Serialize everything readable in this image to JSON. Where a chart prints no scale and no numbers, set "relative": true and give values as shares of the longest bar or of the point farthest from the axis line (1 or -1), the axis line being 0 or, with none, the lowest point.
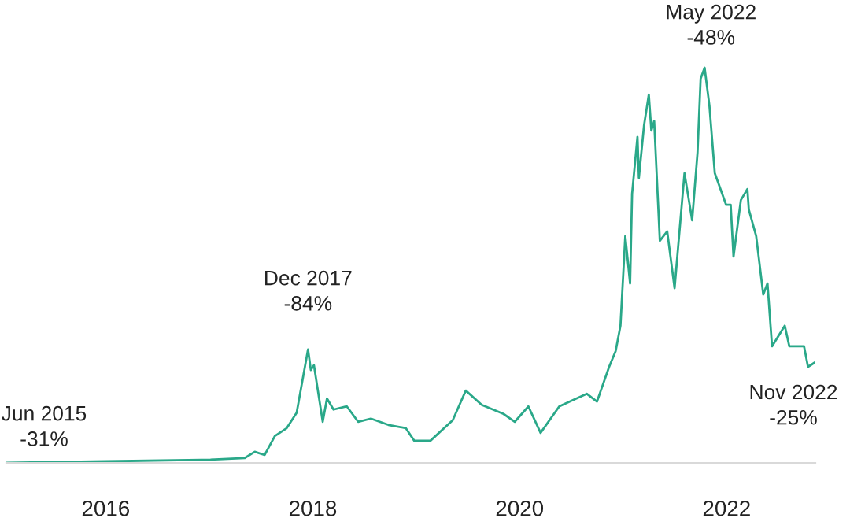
{
  "chart_data": {
    "type": "line",
    "relative": true,
    "color": "#2aa889",
    "x": [
      "2015-01-15",
      "2016-01-01",
      "2017-01-05",
      "2017-05-05",
      "2017-06-10",
      "2017-07-15",
      "2017-08-20",
      "2017-10-01",
      "2017-11-05",
      "2017-12-15",
      "2017-12-25",
      "2018-01-05",
      "2018-02-05",
      "2018-02-20",
      "2018-03-15",
      "2018-05-01",
      "2018-06-10",
      "2018-07-25",
      "2018-09-25",
      "2018-11-25",
      "2018-12-25",
      "2019-02-05",
      "2019-02-20",
      "2019-05-10",
      "2019-06-25",
      "2019-08-20",
      "2019-11-05",
      "2019-12-15",
      "2020-02-01",
      "2020-03-15",
      "2020-05-20",
      "2020-08-25",
      "2020-09-30",
      "2020-11-12",
      "2020-12-05",
      "2020-12-22",
      "2021-01-08",
      "2021-01-25",
      "2021-02-01",
      "2021-02-20",
      "2021-02-25",
      "2021-03-15",
      "2021-04-01",
      "2021-04-10",
      "2021-04-20",
      "2021-05-10",
      "2021-06-05",
      "2021-07-01",
      "2021-08-05",
      "2021-09-01",
      "2021-09-20",
      "2021-10-01",
      "2021-10-15",
      "2021-11-01",
      "2021-11-20",
      "2021-12-30",
      "2022-01-15",
      "2022-01-25",
      "2022-02-20",
      "2022-03-15",
      "2022-03-20",
      "2022-04-15",
      "2022-05-10",
      "2022-05-25",
      "2022-06-10",
      "2022-07-25",
      "2022-08-10",
      "2022-10-01",
      "2022-10-15",
      "2022-11-10"
    ],
    "values": [
      0,
      0.004,
      0.008,
      0.012,
      0.028,
      0.02,
      0.068,
      0.088,
      0.127,
      0.287,
      0.235,
      0.247,
      0.104,
      0.163,
      0.135,
      0.143,
      0.104,
      0.112,
      0.096,
      0.088,
      0.056,
      0.056,
      0.056,
      0.108,
      0.183,
      0.147,
      0.124,
      0.104,
      0.143,
      0.076,
      0.143,
      0.175,
      0.155,
      0.243,
      0.283,
      0.347,
      0.574,
      0.454,
      0.681,
      0.825,
      0.721,
      0.853,
      0.932,
      0.841,
      0.865,
      0.562,
      0.586,
      0.442,
      0.733,
      0.614,
      0.785,
      0.972,
      1,
      0.904,
      0.733,
      0.653,
      0.653,
      0.522,
      0.665,
      0.693,
      0.641,
      0.574,
      0.426,
      0.454,
      0.295,
      0.347,
      0.295,
      0.295,
      0.243,
      0.255
    ],
    "xlim": [
      "2015-01-15",
      "2022-11-10"
    ],
    "xticks": [
      "2016",
      "2018",
      "2020",
      "2022"
    ],
    "annotations": [
      {
        "text": "Jun 2015\n-31%",
        "x": "2015-01-15",
        "y": 0
      },
      {
        "text": "Dec 2017\n-84%",
        "x": "2017-12-15",
        "y": 0.287
      },
      {
        "text": "May 2022\n-48%",
        "x": "2021-10-15",
        "y": 1
      },
      {
        "text": "Nov 2022\n-25%",
        "x": "2022-11-10",
        "y": 0.255
      }
    ],
    "grid": false,
    "legend": false
  }
}
